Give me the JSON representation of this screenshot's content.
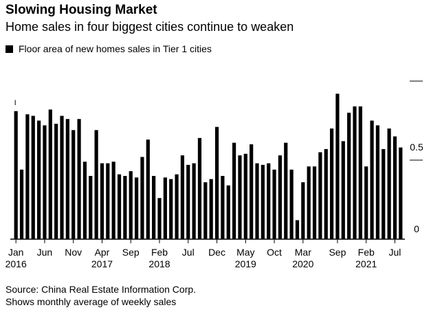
{
  "header": {
    "title": "Slowing Housing Market",
    "subtitle": "Home sales in four biggest cities continue to weaken"
  },
  "legend": {
    "label": "Floor area of new homes sales in Tier 1 cities",
    "color": "#000000"
  },
  "footer": {
    "source": "Source: China Real Estate Information Corp.",
    "note": "Shows monthly average of weekly sales"
  },
  "chart_data": {
    "type": "bar",
    "title": "Slowing Housing Market",
    "subtitle": "Home sales in four biggest cities continue to weaken",
    "series": [
      {
        "name": "Floor area of new homes sales in Tier 1 cities",
        "values": [
          0.81,
          0.44,
          0.79,
          0.78,
          0.75,
          0.72,
          0.82,
          0.73,
          0.78,
          0.76,
          0.69,
          0.76,
          0.49,
          0.4,
          0.69,
          0.48,
          0.48,
          0.49,
          0.41,
          0.4,
          0.43,
          0.39,
          0.52,
          0.63,
          0.4,
          0.26,
          0.39,
          0.38,
          0.41,
          0.53,
          0.47,
          0.48,
          0.64,
          0.36,
          0.38,
          0.71,
          0.4,
          0.34,
          0.61,
          0.53,
          0.54,
          0.6,
          0.48,
          0.47,
          0.48,
          0.44,
          0.53,
          0.61,
          0.44,
          0.12,
          0.36,
          0.46,
          0.46,
          0.55,
          0.57,
          0.7,
          0.92,
          0.62,
          0.8,
          0.84,
          0.84,
          0.46,
          0.75,
          0.72,
          0.57,
          0.7,
          0.65,
          0.58
        ],
        "color": "#000000"
      }
    ],
    "x_start": "2016-01",
    "x_end": "2021-08",
    "x_ticks": [
      {
        "label": "Jan",
        "year": "2016",
        "index": 0
      },
      {
        "label": "Jun",
        "year": "",
        "index": 5
      },
      {
        "label": "Nov",
        "year": "",
        "index": 10
      },
      {
        "label": "Apr",
        "year": "2017",
        "index": 15
      },
      {
        "label": "Sep",
        "year": "",
        "index": 20
      },
      {
        "label": "Feb",
        "year": "2018",
        "index": 25
      },
      {
        "label": "Jul",
        "year": "",
        "index": 30
      },
      {
        "label": "Dec",
        "year": "",
        "index": 35
      },
      {
        "label": "May",
        "year": "2019",
        "index": 40
      },
      {
        "label": "Oct",
        "year": "",
        "index": 45
      },
      {
        "label": "Mar",
        "year": "2020",
        "index": 50
      },
      {
        "label": "Sep",
        "year": "",
        "index": 56
      },
      {
        "label": "Feb",
        "year": "2021",
        "index": 61
      },
      {
        "label": "Jul",
        "year": "",
        "index": 66
      }
    ],
    "y_ticks": [
      {
        "value": 1.0,
        "label": ""
      },
      {
        "value": 0.5,
        "label": "0.5"
      },
      {
        "value": 0,
        "label": "0"
      }
    ],
    "ylim": [
      0,
      1.0
    ],
    "grid": false,
    "legend_position": "top-left",
    "annotations": [
      "I"
    ]
  }
}
